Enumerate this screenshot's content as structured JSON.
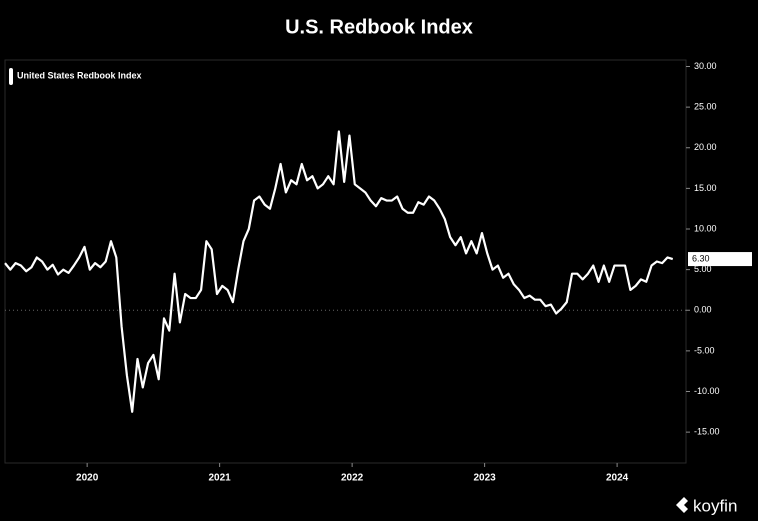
{
  "chart_data": {
    "type": "line",
    "title": "U.S. Redbook Index",
    "brand": "koyfin",
    "x": [
      2019.38,
      2019.42,
      2019.46,
      2019.5,
      2019.54,
      2019.58,
      2019.62,
      2019.66,
      2019.7,
      2019.74,
      2019.78,
      2019.82,
      2019.86,
      2019.9,
      2019.94,
      2019.98,
      2020.02,
      2020.06,
      2020.1,
      2020.14,
      2020.18,
      2020.22,
      2020.26,
      2020.3,
      2020.34,
      2020.38,
      2020.42,
      2020.46,
      2020.5,
      2020.54,
      2020.58,
      2020.62,
      2020.66,
      2020.7,
      2020.74,
      2020.78,
      2020.82,
      2020.86,
      2020.9,
      2020.94,
      2020.98,
      2021.02,
      2021.06,
      2021.1,
      2021.14,
      2021.18,
      2021.22,
      2021.26,
      2021.3,
      2021.34,
      2021.38,
      2021.42,
      2021.46,
      2021.5,
      2021.54,
      2021.58,
      2021.62,
      2021.66,
      2021.7,
      2021.74,
      2021.78,
      2021.82,
      2021.86,
      2021.9,
      2021.94,
      2021.98,
      2022.02,
      2022.06,
      2022.1,
      2022.14,
      2022.18,
      2022.22,
      2022.26,
      2022.3,
      2022.34,
      2022.38,
      2022.42,
      2022.46,
      2022.5,
      2022.54,
      2022.58,
      2022.62,
      2022.66,
      2022.7,
      2022.74,
      2022.78,
      2022.82,
      2022.86,
      2022.9,
      2022.94,
      2022.98,
      2023.02,
      2023.06,
      2023.1,
      2023.14,
      2023.18,
      2023.22,
      2023.26,
      2023.3,
      2023.34,
      2023.38,
      2023.42,
      2023.46,
      2023.5,
      2023.54,
      2023.58,
      2023.62,
      2023.66,
      2023.7,
      2023.74,
      2023.78,
      2023.82,
      2023.86,
      2023.9,
      2023.94,
      2023.98,
      2024.02,
      2024.06,
      2024.1,
      2024.14,
      2024.18,
      2024.22,
      2024.26,
      2024.3,
      2024.34,
      2024.38,
      2024.42
    ],
    "series": [
      {
        "name": "United States Redbook Index",
        "color": "#ffffff",
        "values": [
          5.8,
          5.0,
          5.8,
          5.5,
          4.8,
          5.3,
          6.5,
          6.0,
          5.0,
          5.6,
          4.4,
          5.0,
          4.6,
          5.5,
          6.5,
          7.8,
          5.0,
          5.8,
          5.3,
          6.0,
          8.5,
          6.5,
          -2,
          -8,
          -12.5,
          -6,
          -9.5,
          -6.5,
          -5.5,
          -8.5,
          -1,
          -2.5,
          4.5,
          -1.5,
          2,
          1.5,
          1.5,
          2.5,
          8.5,
          7.5,
          2,
          3,
          2.5,
          1,
          5,
          8.5,
          10,
          13.5,
          14,
          13,
          12.5,
          15,
          18,
          14.5,
          16,
          15.5,
          18,
          16,
          16.5,
          15,
          15.5,
          16.5,
          15.5,
          22,
          15.8,
          21.5,
          15.5,
          15,
          14.5,
          13.5,
          12.8,
          13.8,
          13.5,
          13.5,
          14,
          12.5,
          12,
          12,
          13.3,
          13,
          14,
          13.5,
          12.5,
          11.2,
          9,
          8,
          9,
          7,
          8.5,
          7,
          9.5,
          7,
          5,
          5.5,
          4,
          4.5,
          3.2,
          2.5,
          1.5,
          1.8,
          1.3,
          1.3,
          0.5,
          0.7,
          -0.4,
          0.2,
          1,
          4.5,
          4.5,
          3.8,
          4.5,
          5.5,
          3.5,
          5.5,
          3.5,
          5.5,
          5.5,
          5.5,
          2.5,
          3,
          3.8,
          3.5,
          5.5,
          6,
          5.8,
          6.5,
          6.3
        ]
      }
    ],
    "last_value_label": {
      "value": 6.3,
      "label": "6.30"
    },
    "xlim": [
      2019.38,
      2024.52
    ],
    "xticks": [
      2020,
      2021,
      2022,
      2023,
      2024
    ],
    "ylim": [
      -18.8,
      30.8
    ],
    "yticks": [
      {
        "value": -15,
        "label": "-15.00"
      },
      {
        "value": -10,
        "label": "-10.00"
      },
      {
        "value": -5,
        "label": "-5.00"
      },
      {
        "value": 0,
        "label": "0.00"
      },
      {
        "value": 5,
        "label": "5.00"
      },
      {
        "value": 10,
        "label": "10.00"
      },
      {
        "value": 15,
        "label": "15.00"
      },
      {
        "value": 20,
        "label": "20.00"
      },
      {
        "value": 25,
        "label": "25.00"
      },
      {
        "value": 30,
        "label": "30.00"
      }
    ],
    "grid": false,
    "zero_line": true,
    "legend": "top-left"
  }
}
